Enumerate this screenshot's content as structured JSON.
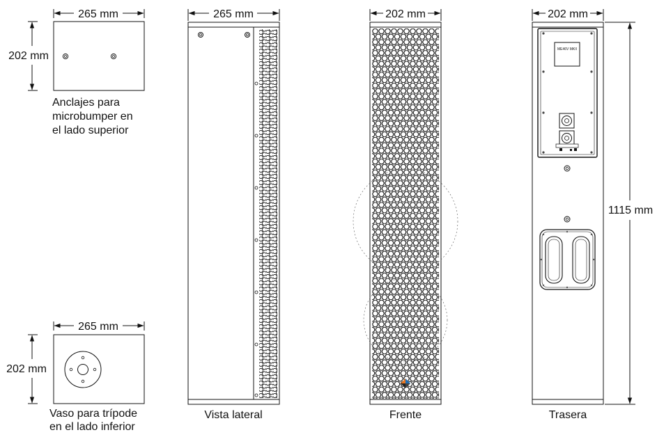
{
  "top_view": {
    "width_label": "265 mm",
    "depth_label": "202 mm",
    "caption_lines": [
      "Anclajes para",
      "microbumper en",
      "el lado superior"
    ]
  },
  "bottom_view": {
    "width_label": "265 mm",
    "depth_label": "202 mm",
    "caption_lines": [
      "Vaso para trípode",
      "en el lado inferior"
    ]
  },
  "side_view": {
    "width_label": "265 mm",
    "caption": "Vista lateral"
  },
  "front_view": {
    "width_label": "202 mm",
    "caption": "Frente"
  },
  "rear_view": {
    "width_label": "202 mm",
    "height_label": "1115 mm",
    "caption": "Trasera",
    "panel_label": "ME46V MKII"
  }
}
